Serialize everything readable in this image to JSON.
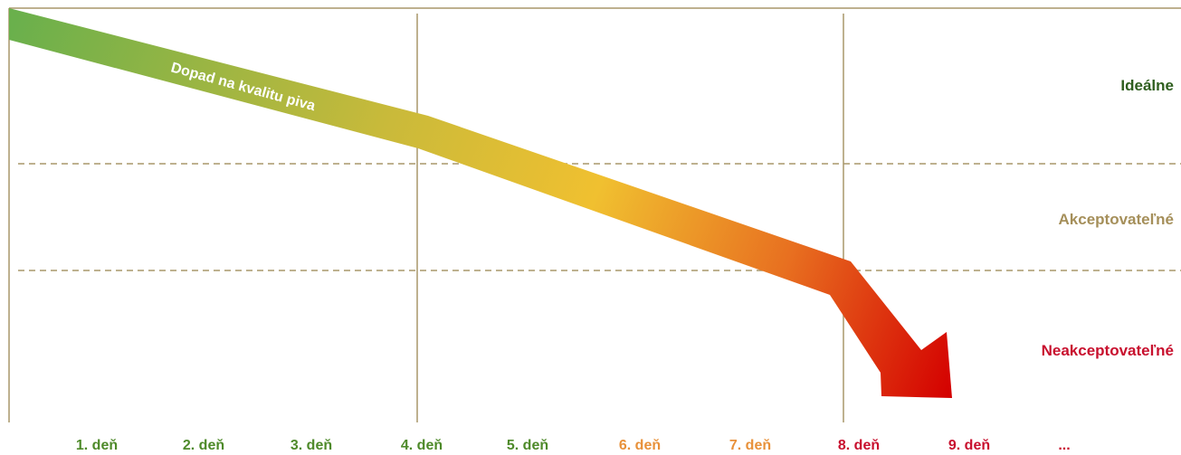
{
  "arrow": {
    "label": "Dopad na kvalitu piva",
    "gradient": [
      "#6ab04c",
      "#c9ba3a",
      "#f0c030",
      "#e87020",
      "#d40000"
    ]
  },
  "zones": [
    {
      "id": "idealne",
      "label": "Ideálne",
      "color": "#2e5e1e"
    },
    {
      "id": "akceptovatelne",
      "label": "Akceptovateľné",
      "color": "#a58f5a"
    },
    {
      "id": "neakceptovatelne",
      "label": "Neakceptovateľné",
      "color": "#c8102e"
    }
  ],
  "days": [
    {
      "label": "1. deň",
      "color": "#4e8a2a"
    },
    {
      "label": "2. deň",
      "color": "#4e8a2a"
    },
    {
      "label": "3. deň",
      "color": "#4e8a2a"
    },
    {
      "label": "4. deň",
      "color": "#4e8a2a"
    },
    {
      "label": "5. deň",
      "color": "#4e8a2a"
    },
    {
      "label": "6. deň",
      "color": "#e8913a"
    },
    {
      "label": "7. deň",
      "color": "#e8913a"
    },
    {
      "label": "8. deň",
      "color": "#c8102e"
    },
    {
      "label": "9. deň",
      "color": "#c8102e"
    },
    {
      "label": "...",
      "color": "#c8102e"
    }
  ],
  "colors": {
    "frame": "#a8976a",
    "dashed": "#a8976a"
  }
}
